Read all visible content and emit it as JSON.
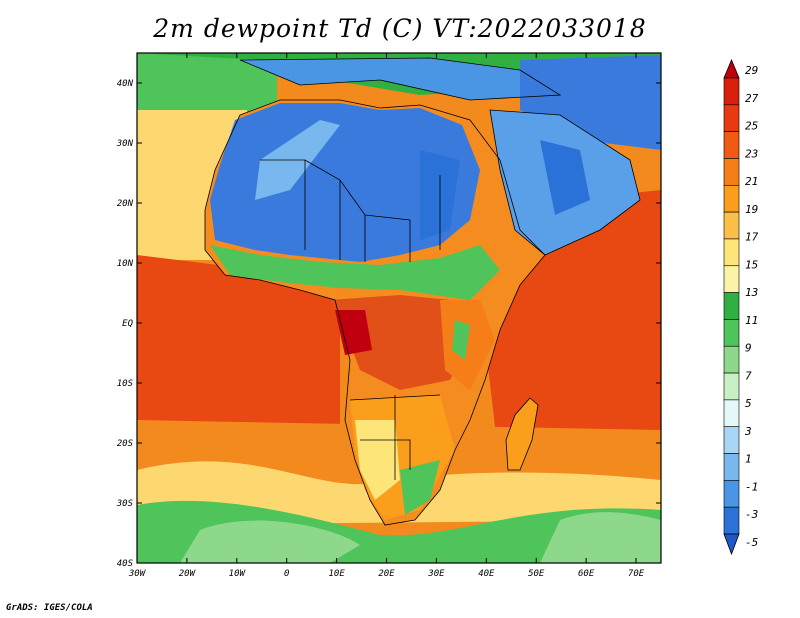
{
  "title": "2m dewpoint Td (C) VT:2022033018",
  "credit": "GrADS: IGES/COLA",
  "map": {
    "lon_labels": [
      "30W",
      "20W",
      "10W",
      "0",
      "10E",
      "20E",
      "30E",
      "40E",
      "50E",
      "60E",
      "70E"
    ],
    "lat_labels": [
      "40N",
      "30N",
      "20N",
      "10N",
      "EQ",
      "10S",
      "20S",
      "30S",
      "40S"
    ]
  },
  "colorbar": {
    "labels": [
      "29",
      "27",
      "25",
      "23",
      "21",
      "19",
      "17",
      "15",
      "13",
      "11",
      "9",
      "7",
      "5",
      "3",
      "1",
      "-1",
      "-3",
      "-5"
    ],
    "colors": [
      "#c0000e",
      "#d8200c",
      "#e83a12",
      "#f05a14",
      "#f57e18",
      "#fa9e1c",
      "#fcc04a",
      "#fde57a",
      "#fdf3a6",
      "#30b040",
      "#4fc45a",
      "#8ed88c",
      "#c8f0c4",
      "#e4f8f8",
      "#a8d6f4",
      "#78b8ee",
      "#4a96e4",
      "#2a72d8",
      "#1c58c8"
    ]
  },
  "colors": {
    "ocean_tropical": "#e84812",
    "ocean_warm": "#f28a1e",
    "ocean_mild": "#fdd870",
    "ocean_cool": "#5cc858",
    "desert_dry": "#3a7adc",
    "sahel": "#5aa0e8",
    "rainforest": "#e05018",
    "savanna": "#f48c20"
  }
}
